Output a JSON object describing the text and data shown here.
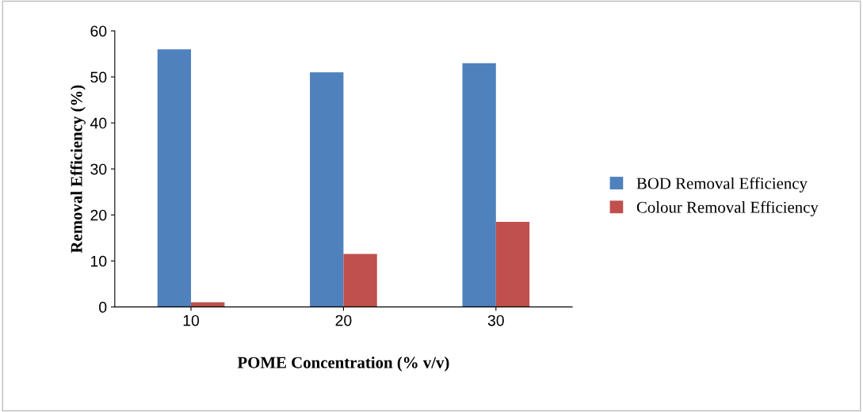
{
  "chart_data": {
    "type": "bar",
    "xlabel": "POME Concentration (% v/v)",
    "ylabel": "Removal Efficiency (%)",
    "categories": [
      "10",
      "20",
      "30"
    ],
    "series": [
      {
        "name": "BOD Removal Efficiency",
        "color": "#4f81bd",
        "values": [
          56,
          51,
          53
        ]
      },
      {
        "name": "Colour Removal Efficiency",
        "color": "#c0504d",
        "values": [
          1,
          11.5,
          18.5
        ]
      }
    ],
    "ylim": [
      0,
      60
    ],
    "yticks": [
      0,
      10,
      20,
      30,
      40,
      50,
      60
    ],
    "grid": false,
    "legend": "right"
  }
}
